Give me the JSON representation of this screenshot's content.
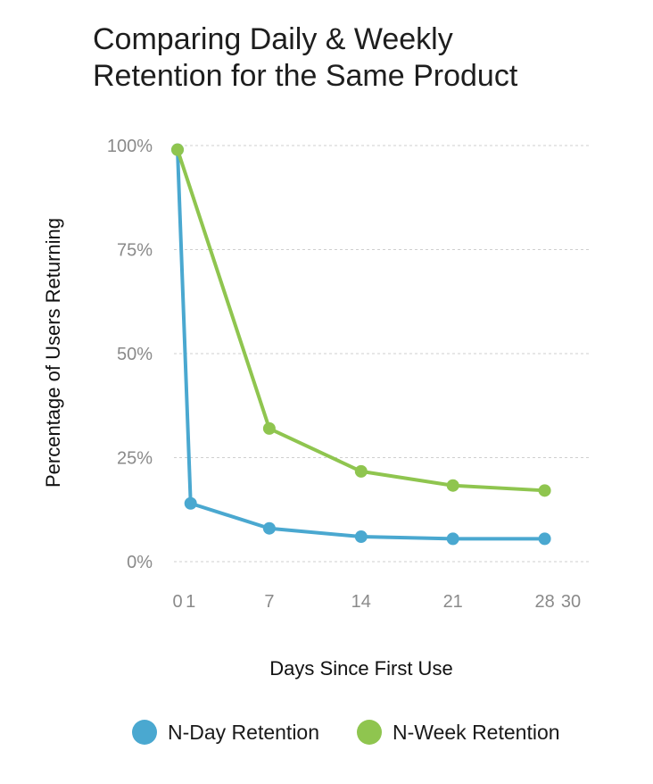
{
  "colors": {
    "n_day": "#4aa8d0",
    "n_week": "#8fc54f",
    "grid": "#cfcfcf",
    "tick": "#8a8a8a"
  },
  "chart_data": {
    "type": "line",
    "title": "Comparing Daily & Weekly Retention for the Same Product",
    "xlabel": "Days Since First Use",
    "ylabel": "Percentage of Users Returning",
    "xlim": [
      0,
      30
    ],
    "ylim": [
      0,
      100
    ],
    "x_ticks": [
      0,
      1,
      7,
      14,
      21,
      28,
      30
    ],
    "x_tick_labels": [
      "0",
      "1",
      "7",
      "14",
      "21",
      "28",
      "30"
    ],
    "y_ticks": [
      0,
      25,
      50,
      75,
      100
    ],
    "y_tick_labels": [
      "0%",
      "25%",
      "50%",
      "75%",
      "100%"
    ],
    "grid": true,
    "legend_position": "bottom",
    "series": [
      {
        "name": "N-Day Retention",
        "color": "#4aa8d0",
        "x": [
          0,
          1,
          7,
          14,
          21,
          28
        ],
        "y": [
          99,
          14,
          8,
          6,
          5.5,
          5.5
        ]
      },
      {
        "name": "N-Week Retention",
        "color": "#8fc54f",
        "x": [
          0,
          7,
          14,
          21,
          28
        ],
        "y": [
          99,
          32,
          21.7,
          18.3,
          17.1
        ]
      }
    ]
  }
}
